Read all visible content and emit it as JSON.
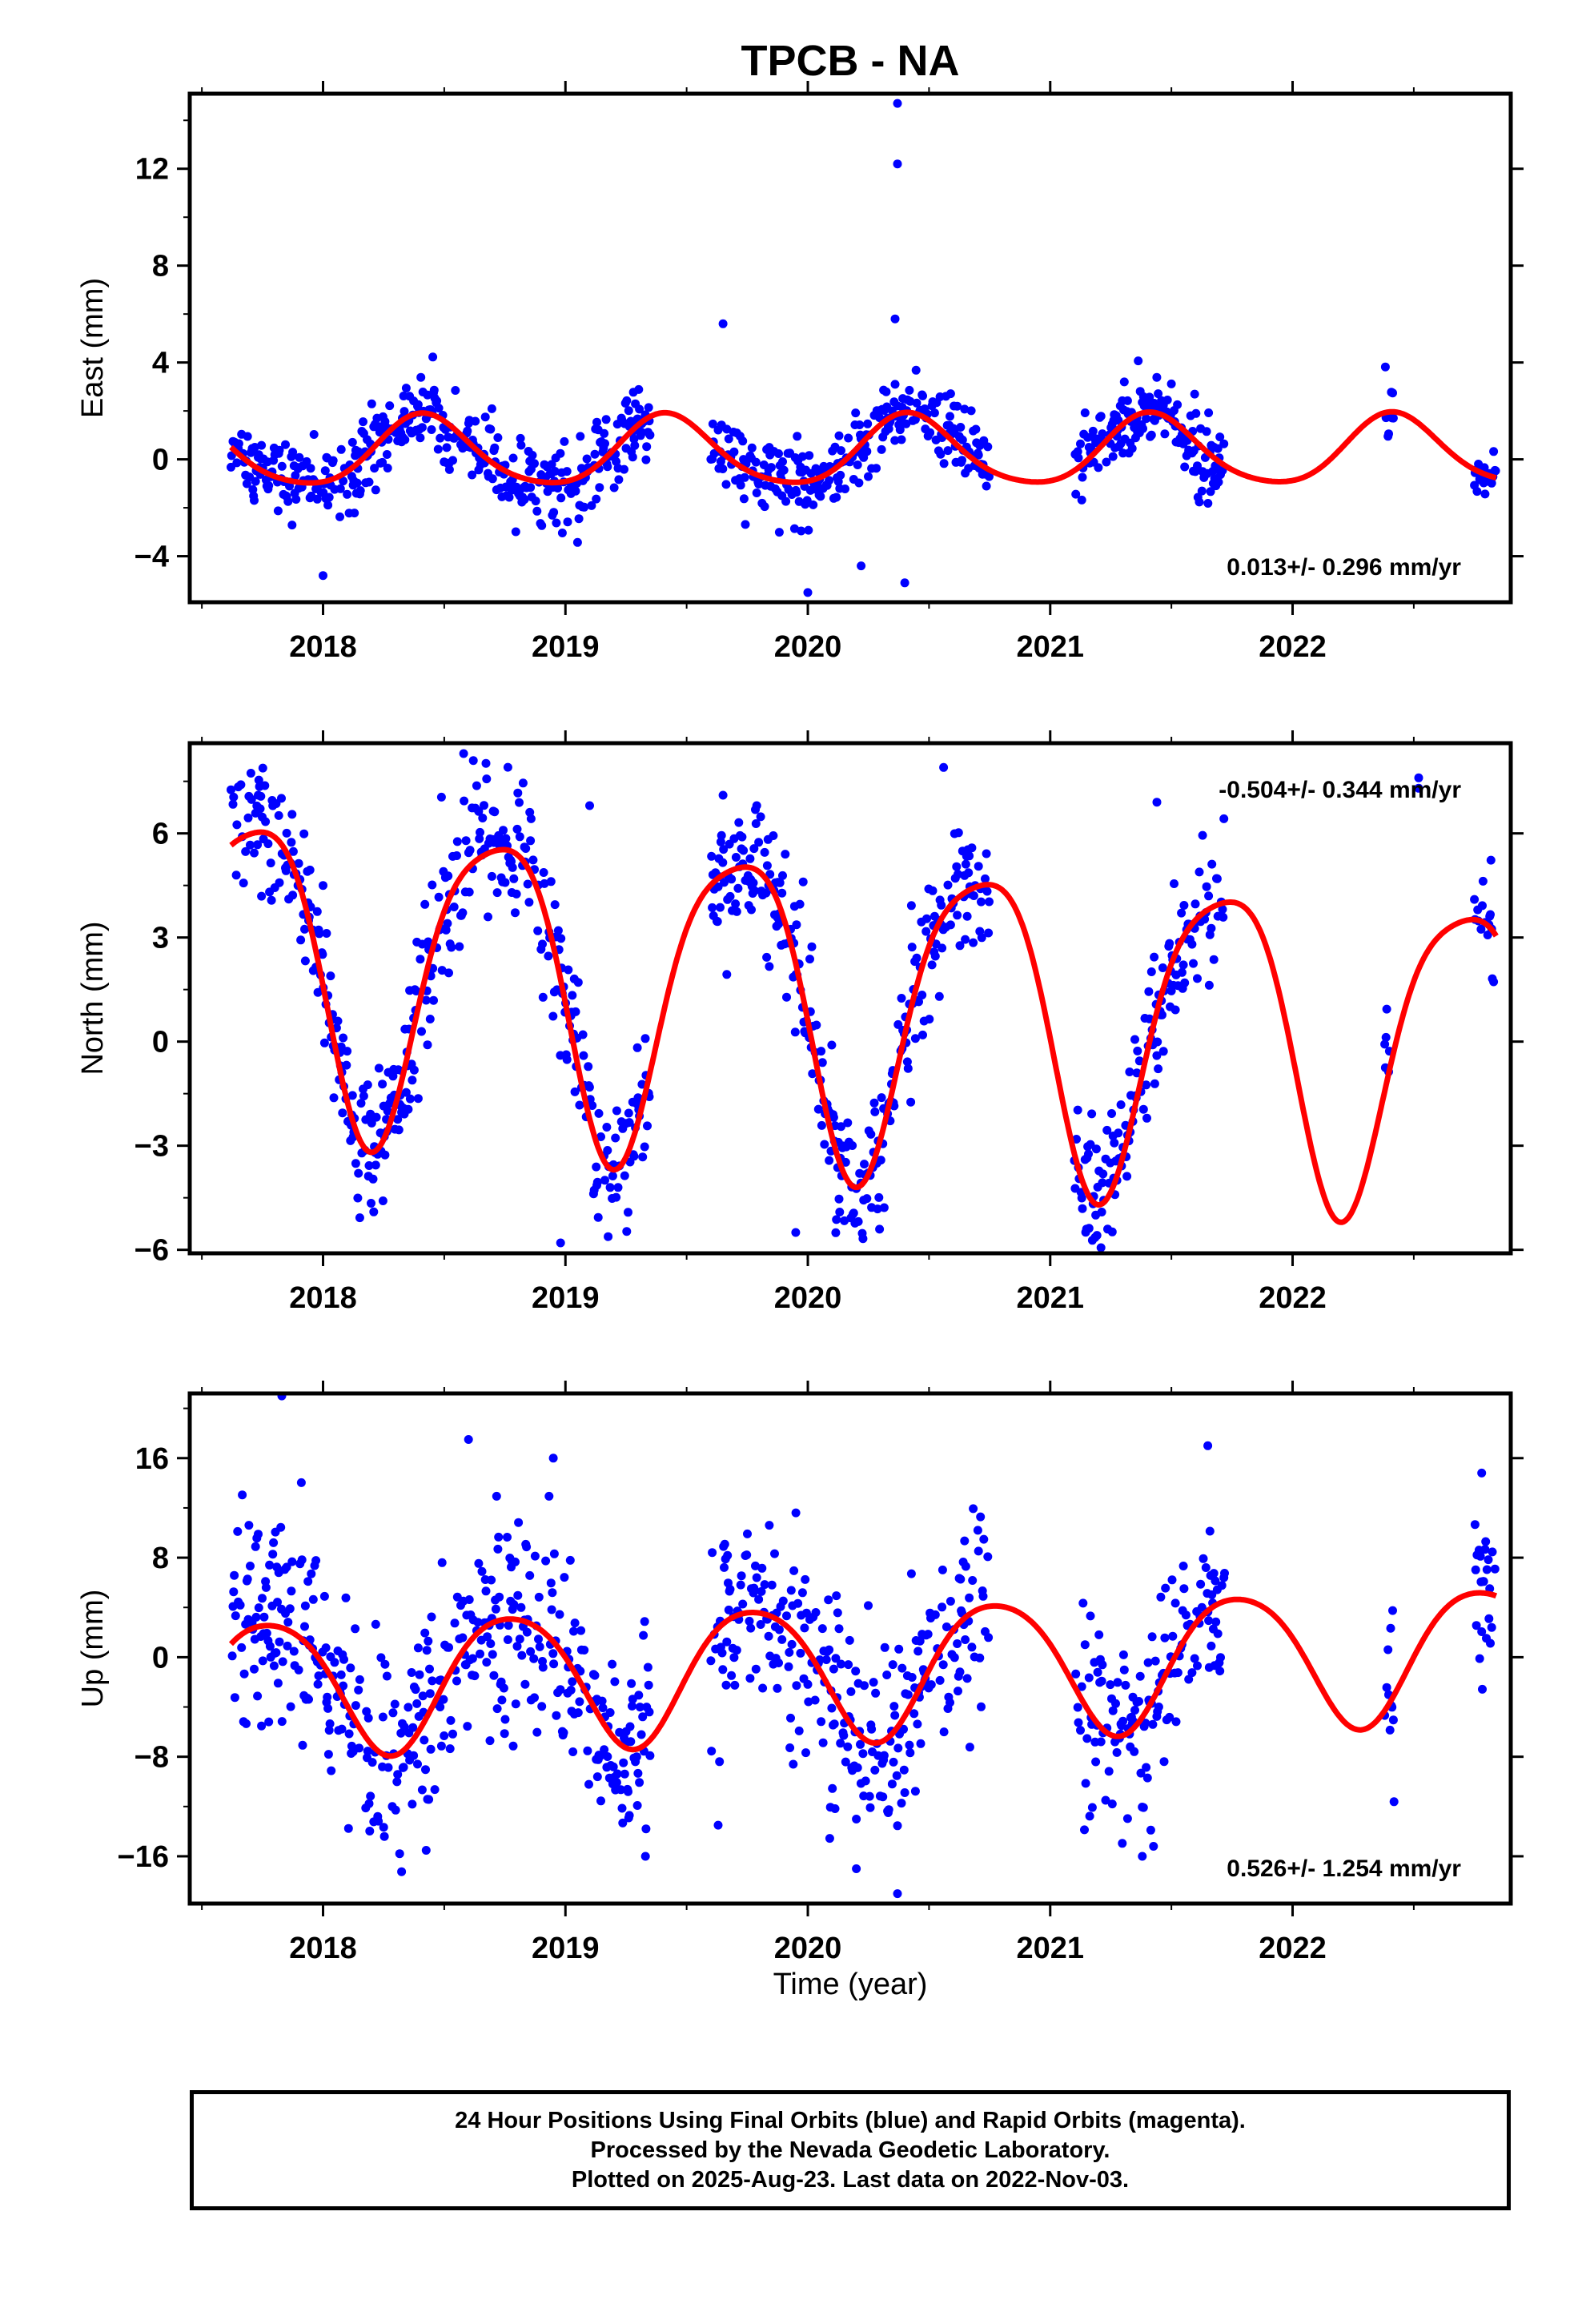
{
  "title": "TPCB - NA",
  "colors": {
    "points": "#0000ff",
    "model": "#ff0000",
    "axes": "#000000"
  },
  "xlabel": "Time (year)",
  "footer": {
    "line1": "24 Hour Positions Using Final Orbits (blue) and Rapid Orbits (magenta).",
    "line2": "Processed by the Nevada Geodetic Laboratory.",
    "line3": "Plotted on 2025-Aug-23. Last data on 2022-Nov-03."
  },
  "chart_data": [
    {
      "type": "scatter",
      "ylabel": "East (mm)",
      "xlim": [
        2017.45,
        2022.9
      ],
      "ylim": [
        -5.9,
        15.1
      ],
      "x_ticks": [
        2018,
        2019,
        2020,
        2021,
        2022
      ],
      "x_tick_labels": [
        "2018",
        "2019",
        "2020",
        "2021",
        "2022"
      ],
      "y_ticks": [
        -4,
        0,
        4,
        8,
        12
      ],
      "y_tick_labels": [
        "−4",
        "0",
        "4",
        "8",
        "12"
      ],
      "annotation": "0.013+/- 0.296 mm/yr",
      "annotation_position": "bottom-right",
      "model": {
        "mean": 0.3,
        "trend": 0.013,
        "annual": [
          0.7,
          -1.25
        ],
        "semiannual": [
          -0.2,
          0.05
        ]
      },
      "data_ranges": [
        [
          2017.62,
          2019.35
        ],
        [
          2019.6,
          2020.75
        ],
        [
          2021.1,
          2021.72
        ],
        [
          2022.38,
          2022.42
        ],
        [
          2022.75,
          2022.84
        ]
      ],
      "noise": 0.8,
      "outliers": [
        [
          2020.37,
          14.7
        ],
        [
          2020.37,
          12.2
        ],
        [
          2020.36,
          5.8
        ],
        [
          2019.65,
          5.6
        ],
        [
          2020.0,
          -5.5
        ],
        [
          2020.4,
          -5.1
        ],
        [
          2020.22,
          -4.4
        ],
        [
          2018.0,
          -4.8
        ],
        [
          2020.36,
          3.1
        ]
      ]
    },
    {
      "type": "scatter",
      "ylabel": "North (mm)",
      "xlim": [
        2017.45,
        2022.9
      ],
      "ylim": [
        -6.1,
        8.6
      ],
      "x_ticks": [
        2018,
        2019,
        2020,
        2021,
        2022
      ],
      "x_tick_labels": [
        "2018",
        "2019",
        "2020",
        "2021",
        "2022"
      ],
      "y_ticks": [
        -6,
        -3,
        0,
        3,
        6
      ],
      "y_tick_labels": [
        "−6",
        "−3",
        "0",
        "3",
        "6"
      ],
      "annotation": "-0.504+/- 0.344 mm/yr",
      "annotation_position": "top-right",
      "model": {
        "mean": 1.2,
        "trend": -0.504,
        "annual": [
          -4.3,
          -1.2
        ],
        "semiannual": [
          -0.6,
          0.6
        ]
      },
      "data_ranges": [
        [
          2017.62,
          2019.35
        ],
        [
          2019.6,
          2020.75
        ],
        [
          2021.1,
          2021.72
        ],
        [
          2022.38,
          2022.42
        ],
        [
          2022.75,
          2022.84
        ]
      ],
      "noise": 1.0,
      "outliers": [
        [
          2018.58,
          8.3
        ],
        [
          2018.62,
          8.1
        ],
        [
          2019.1,
          6.8
        ],
        [
          2019.65,
          7.1
        ],
        [
          2020.56,
          7.9
        ],
        [
          2022.52,
          7.6
        ],
        [
          2022.52,
          7.3
        ],
        [
          2021.44,
          6.9
        ],
        [
          2018.98,
          -5.8
        ],
        [
          2021.15,
          -5.4
        ],
        [
          2019.95,
          -5.5
        ],
        [
          2018.0,
          4.5
        ]
      ]
    },
    {
      "type": "scatter",
      "ylabel": "Up (mm)",
      "xlim": [
        2017.45,
        2022.9
      ],
      "ylim": [
        -19.8,
        21.2
      ],
      "x_ticks": [
        2018,
        2019,
        2020,
        2021,
        2022
      ],
      "x_tick_labels": [
        "2018",
        "2019",
        "2020",
        "2021",
        "2022"
      ],
      "y_ticks": [
        -16,
        -8,
        0,
        8,
        16
      ],
      "y_tick_labels": [
        "−16",
        "−8",
        "0",
        "8",
        "16"
      ],
      "annotation": "0.526+/- 1.254 mm/yr",
      "annotation_position": "bottom-right",
      "model": {
        "mean": -1.0,
        "trend": 0.526,
        "annual": [
          -5.3,
          0.9
        ],
        "semiannual": [
          0.3,
          0.6
        ]
      },
      "data_ranges": [
        [
          2017.62,
          2019.35
        ],
        [
          2019.6,
          2020.75
        ],
        [
          2021.1,
          2021.72
        ],
        [
          2022.38,
          2022.42
        ],
        [
          2022.75,
          2022.84
        ]
      ],
      "noise": 4.0,
      "outliers": [
        [
          2017.83,
          21.0
        ],
        [
          2018.6,
          17.5
        ],
        [
          2021.65,
          17.0
        ],
        [
          2020.37,
          -19.0
        ],
        [
          2020.2,
          -17.0
        ],
        [
          2019.33,
          -16.0
        ],
        [
          2021.38,
          -16.0
        ],
        [
          2019.63,
          -13.5
        ],
        [
          2022.78,
          14.8
        ],
        [
          2018.95,
          16.0
        ]
      ]
    }
  ]
}
